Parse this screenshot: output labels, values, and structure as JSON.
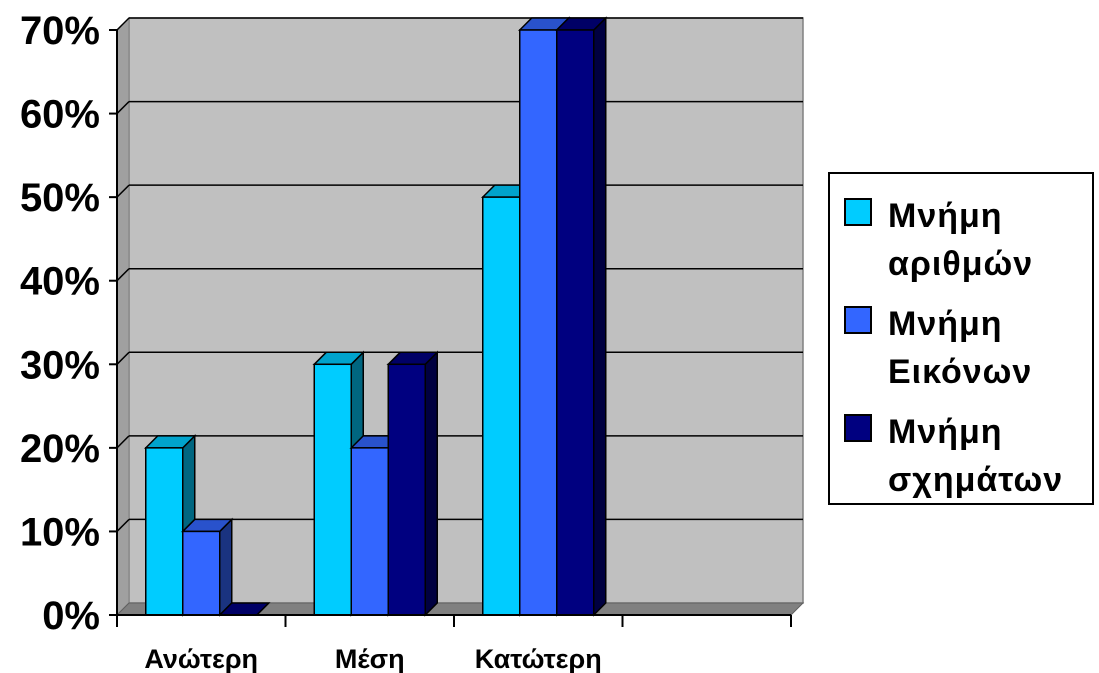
{
  "chart_data": {
    "type": "bar",
    "title": "",
    "xlabel": "",
    "ylabel": "",
    "categories": [
      "Ανώτερη",
      "Μέση",
      "Κατώτερη",
      ""
    ],
    "series": [
      {
        "name": "Μνήμη αριθμών",
        "values": [
          20,
          30,
          50,
          null
        ],
        "color": "#00ccff"
      },
      {
        "name": "Μνήμη Εικόνων",
        "values": [
          10,
          20,
          70,
          null
        ],
        "color": "#3366ff"
      },
      {
        "name": "Μνήμη σχημάτων",
        "values": [
          0,
          30,
          70,
          null
        ],
        "color": "#000080"
      }
    ],
    "ylim": [
      0,
      70
    ],
    "yticks": [
      "0%",
      "10%",
      "20%",
      "30%",
      "40%",
      "50%",
      "60%",
      "70%"
    ],
    "grid": true,
    "legend_position": "right",
    "plot_background": "#c0c0c0"
  },
  "legend": {
    "items": [
      {
        "line1": "Μνήμη",
        "line2": "αριθμών",
        "color": "#00ccff"
      },
      {
        "line1": "Μνήμη",
        "line2": "Εικόνων",
        "color": "#3366ff"
      },
      {
        "line1": "Μνήμη",
        "line2": "σχημάτων",
        "color": "#000080"
      }
    ]
  }
}
